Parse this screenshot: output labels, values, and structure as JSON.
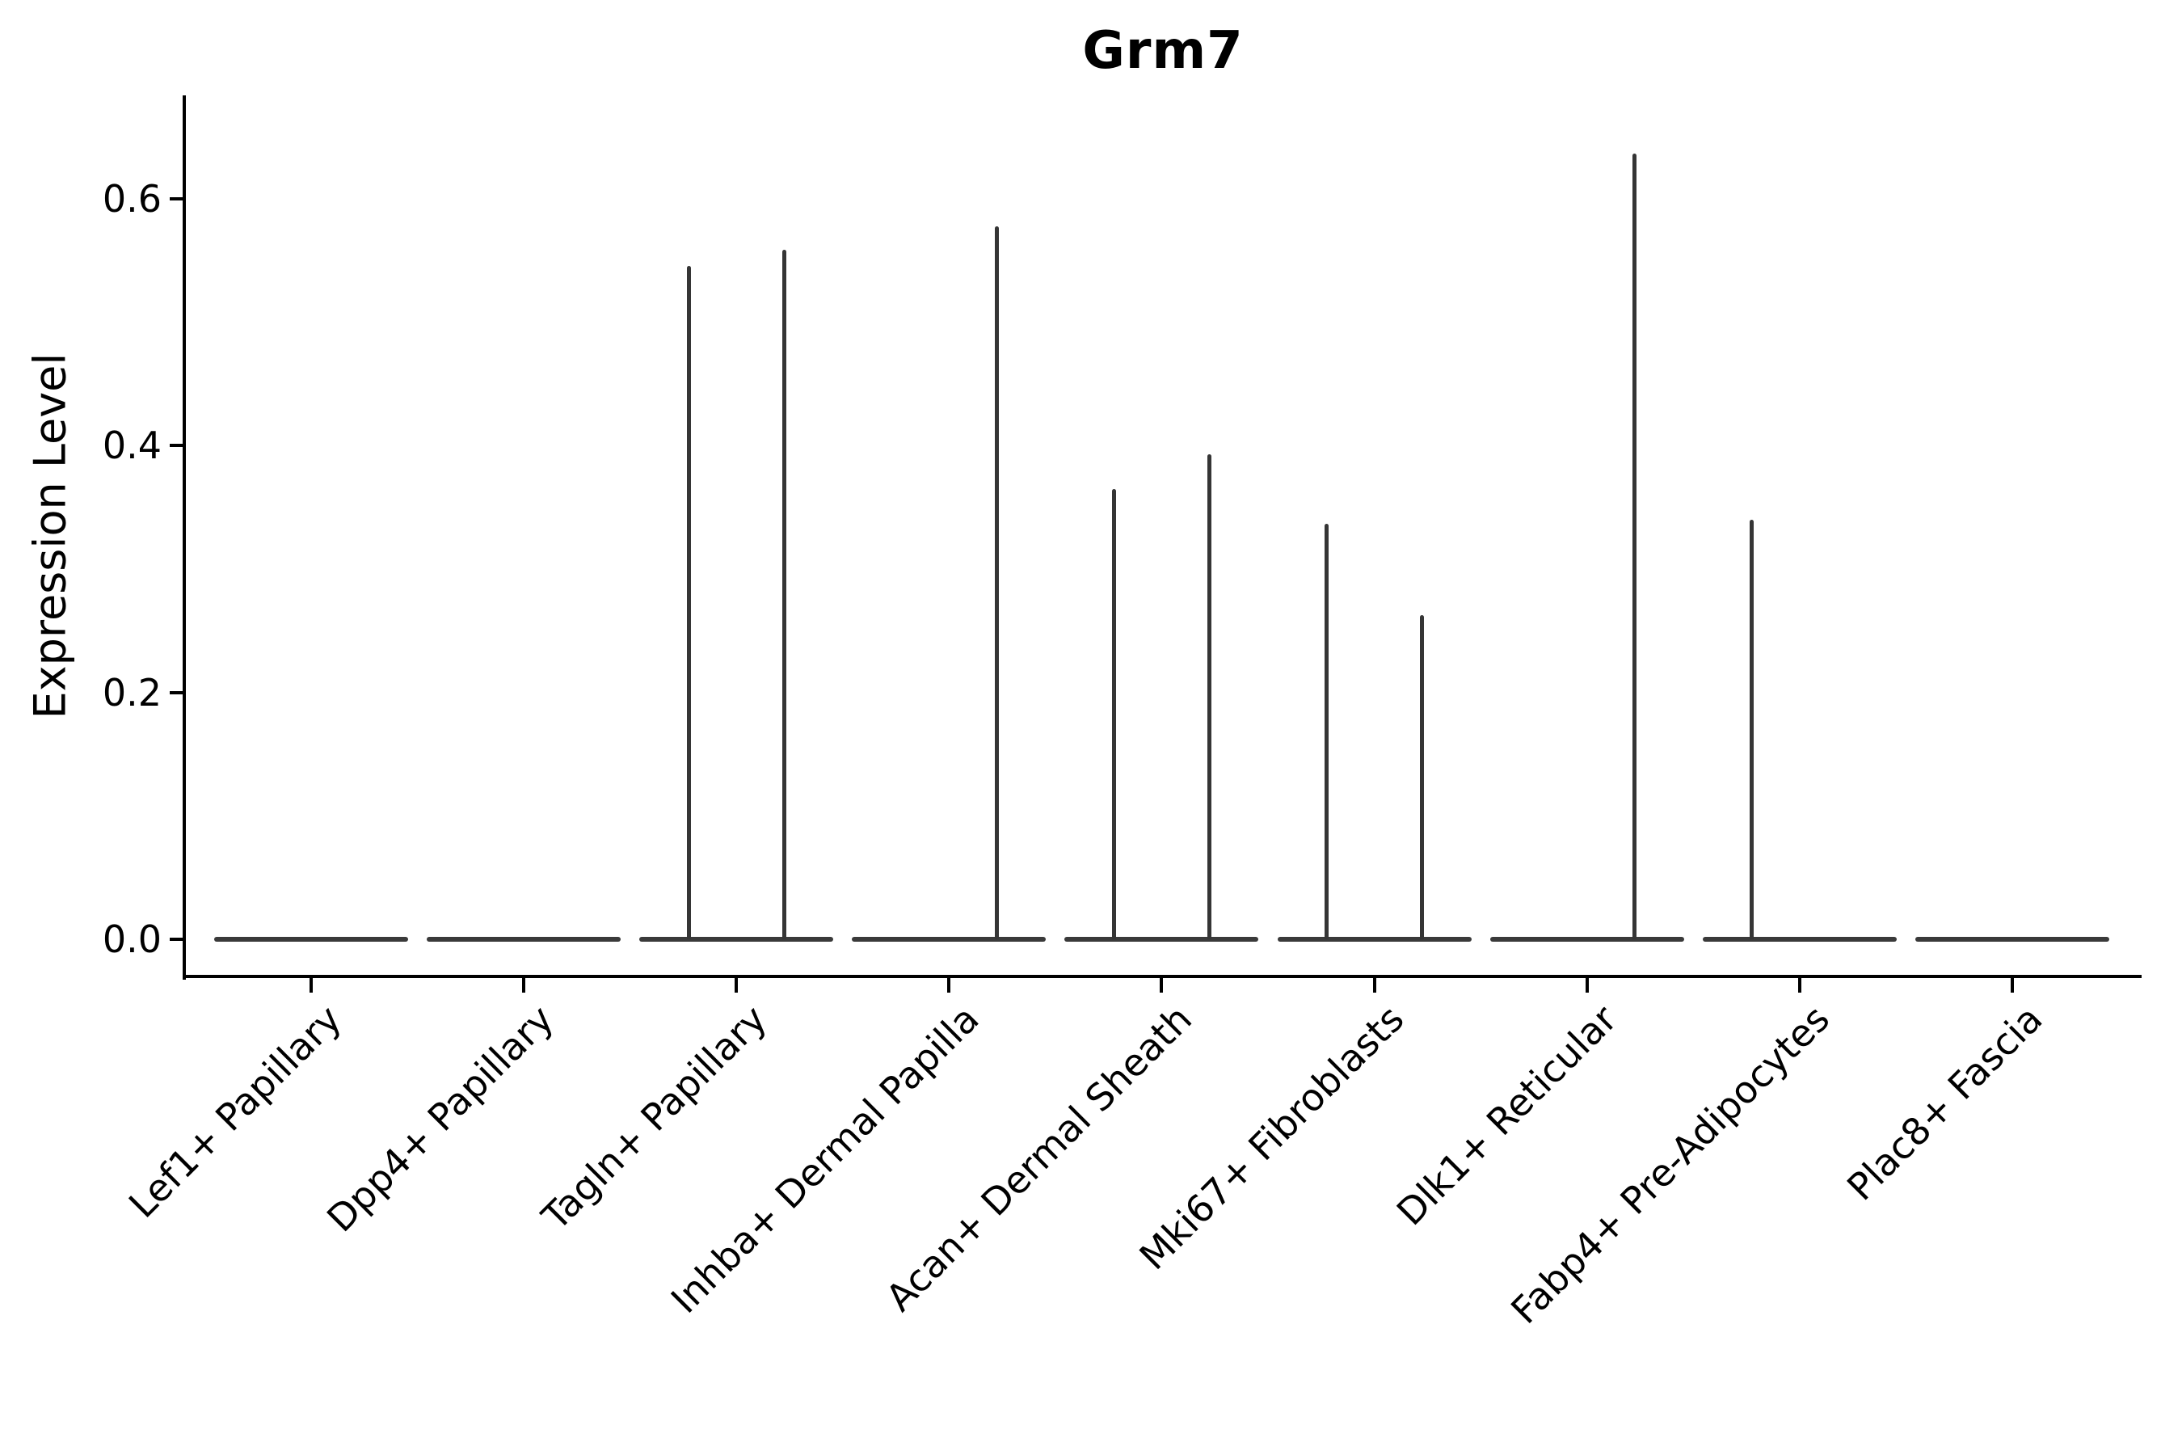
{
  "title": "Grm7",
  "chart_data": {
    "type": "violin",
    "title": "Grm7",
    "xlabel": "",
    "ylabel": "Expression Level",
    "ytick_labels": [
      "0.0",
      "0.2",
      "0.4",
      "0.6"
    ],
    "yticks": [
      0.0,
      0.2,
      0.4,
      0.6
    ],
    "ylim": [
      -0.03,
      0.684
    ],
    "grid": false,
    "legend": null,
    "line_color": "#353535",
    "axis_color": "#000000",
    "categories": [
      "Lef1+ Papillary",
      "Dpp4+ Papillary",
      "Tagln+ Papillary",
      "Inhba+ Dermal Papilla",
      "Acan+ Dermal Sheath",
      "Mki67+ Fibroblasts",
      "Dlk1+ Reticular",
      "Fabp4+ Pre-Adipocytes",
      "Plac8+ Fascia"
    ],
    "violins": [
      {
        "category": "Lef1+ Papillary",
        "base_value": 0.0,
        "spikes": []
      },
      {
        "category": "Dpp4+ Papillary",
        "base_value": 0.0,
        "spikes": []
      },
      {
        "category": "Tagln+ Papillary",
        "base_value": 0.0,
        "spikes": [
          {
            "side": "left",
            "value": 0.546
          },
          {
            "side": "right",
            "value": 0.559
          }
        ]
      },
      {
        "category": "Inhba+ Dermal Papilla",
        "base_value": 0.0,
        "spikes": [
          {
            "side": "right",
            "value": 0.578
          }
        ]
      },
      {
        "category": "Acan+ Dermal Sheath",
        "base_value": 0.0,
        "spikes": [
          {
            "side": "left",
            "value": 0.365
          },
          {
            "side": "right",
            "value": 0.393
          }
        ]
      },
      {
        "category": "Mki67+ Fibroblasts",
        "base_value": 0.0,
        "spikes": [
          {
            "side": "left",
            "value": 0.337
          },
          {
            "side": "right",
            "value": 0.263
          }
        ]
      },
      {
        "category": "Dlk1+ Reticular",
        "base_value": 0.0,
        "spikes": [
          {
            "side": "right",
            "value": 0.637
          }
        ]
      },
      {
        "category": "Fabp4+ Pre-Adipocytes",
        "base_value": 0.0,
        "spikes": [
          {
            "side": "left",
            "value": 0.34
          }
        ]
      },
      {
        "category": "Plac8+ Fascia",
        "base_value": 0.0,
        "spikes": []
      }
    ]
  }
}
